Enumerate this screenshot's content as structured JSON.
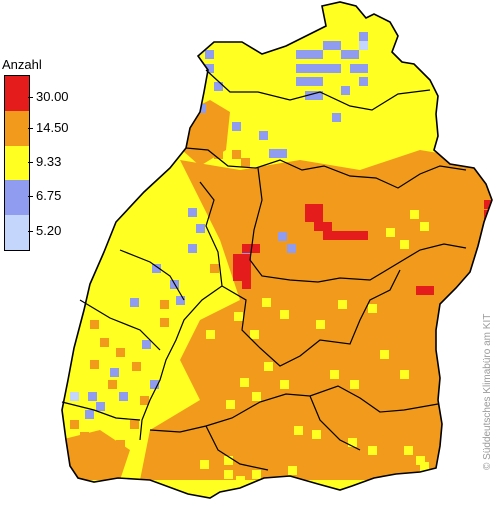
{
  "legend": {
    "title": "Anzahl",
    "classes": [
      {
        "label": "30.00",
        "color": "#e41c1c"
      },
      {
        "label": "14.50",
        "color": "#f29a1c"
      },
      {
        "label": "9.33",
        "color": "#ffff22"
      },
      {
        "label": "6.75",
        "color": "#8f9cf0"
      },
      {
        "label": "5.20",
        "color": "#c4d6fb"
      }
    ]
  },
  "credit": "© Süddeutsches Klimabüro am KIT",
  "colors": {
    "base": "#ffff22",
    "high": "#f29a1c",
    "max": "#e41c1c",
    "low": "#8f9cf0",
    "lowest": "#c4d6fb",
    "border": "#000000"
  }
}
